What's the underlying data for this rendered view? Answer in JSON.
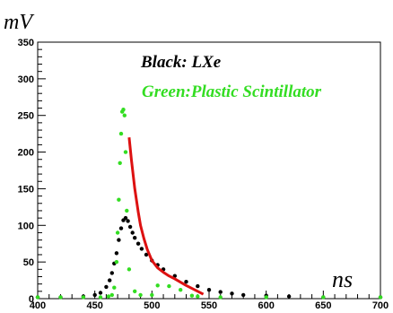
{
  "chart_data": {
    "type": "scatter",
    "xlabel": "ns",
    "ylabel": "mV",
    "xlim": [
      400,
      700
    ],
    "ylim": [
      0,
      350
    ],
    "x_ticks": [
      400,
      450,
      500,
      550,
      600,
      650,
      700
    ],
    "y_ticks": [
      0,
      50,
      100,
      150,
      200,
      250,
      300,
      350
    ],
    "grid": false,
    "legend_texts": [
      {
        "text": "Black: LXe",
        "color": "#000000"
      },
      {
        "text": "Green:Plastic Scintillator",
        "color": "#33dd22"
      }
    ],
    "series": [
      {
        "color": "#000000",
        "style": "points",
        "x": [
          400,
          420,
          440,
          450,
          455,
          460,
          463,
          465,
          467,
          469,
          471,
          473,
          475,
          477,
          479,
          481,
          483,
          485,
          488,
          491,
          495,
          500,
          505,
          510,
          520,
          530,
          540,
          550,
          560,
          570,
          580,
          600,
          620,
          650,
          700
        ],
        "y": [
          2,
          2,
          3,
          5,
          8,
          16,
          25,
          35,
          48,
          62,
          80,
          96,
          107,
          110,
          106,
          98,
          90,
          83,
          75,
          68,
          60,
          52,
          46,
          40,
          31,
          23,
          17,
          12,
          9,
          7,
          5,
          4,
          3,
          2,
          2
        ]
      },
      {
        "color": "#33dd22",
        "style": "points",
        "x": [
          400,
          420,
          440,
          455,
          462,
          465,
          467,
          469,
          470,
          471,
          472,
          473,
          474,
          475,
          476,
          477,
          478,
          480,
          485,
          490,
          500,
          505,
          515,
          525,
          535,
          540,
          560,
          600,
          650,
          700
        ],
        "y": [
          2,
          2,
          2,
          2,
          3,
          5,
          15,
          50,
          90,
          135,
          185,
          225,
          255,
          258,
          250,
          200,
          120,
          40,
          10,
          5,
          5,
          18,
          17,
          12,
          4,
          3,
          2,
          2,
          2,
          2
        ]
      },
      {
        "color": "#dd1111",
        "style": "line",
        "x": [
          480,
          482,
          485,
          488,
          490,
          493,
          496,
          500,
          505,
          510,
          515,
          520,
          530,
          540,
          545
        ],
        "y": [
          220,
          190,
          150,
          118,
          100,
          82,
          67,
          52,
          42,
          36,
          31,
          27,
          18,
          10,
          6
        ]
      }
    ]
  }
}
